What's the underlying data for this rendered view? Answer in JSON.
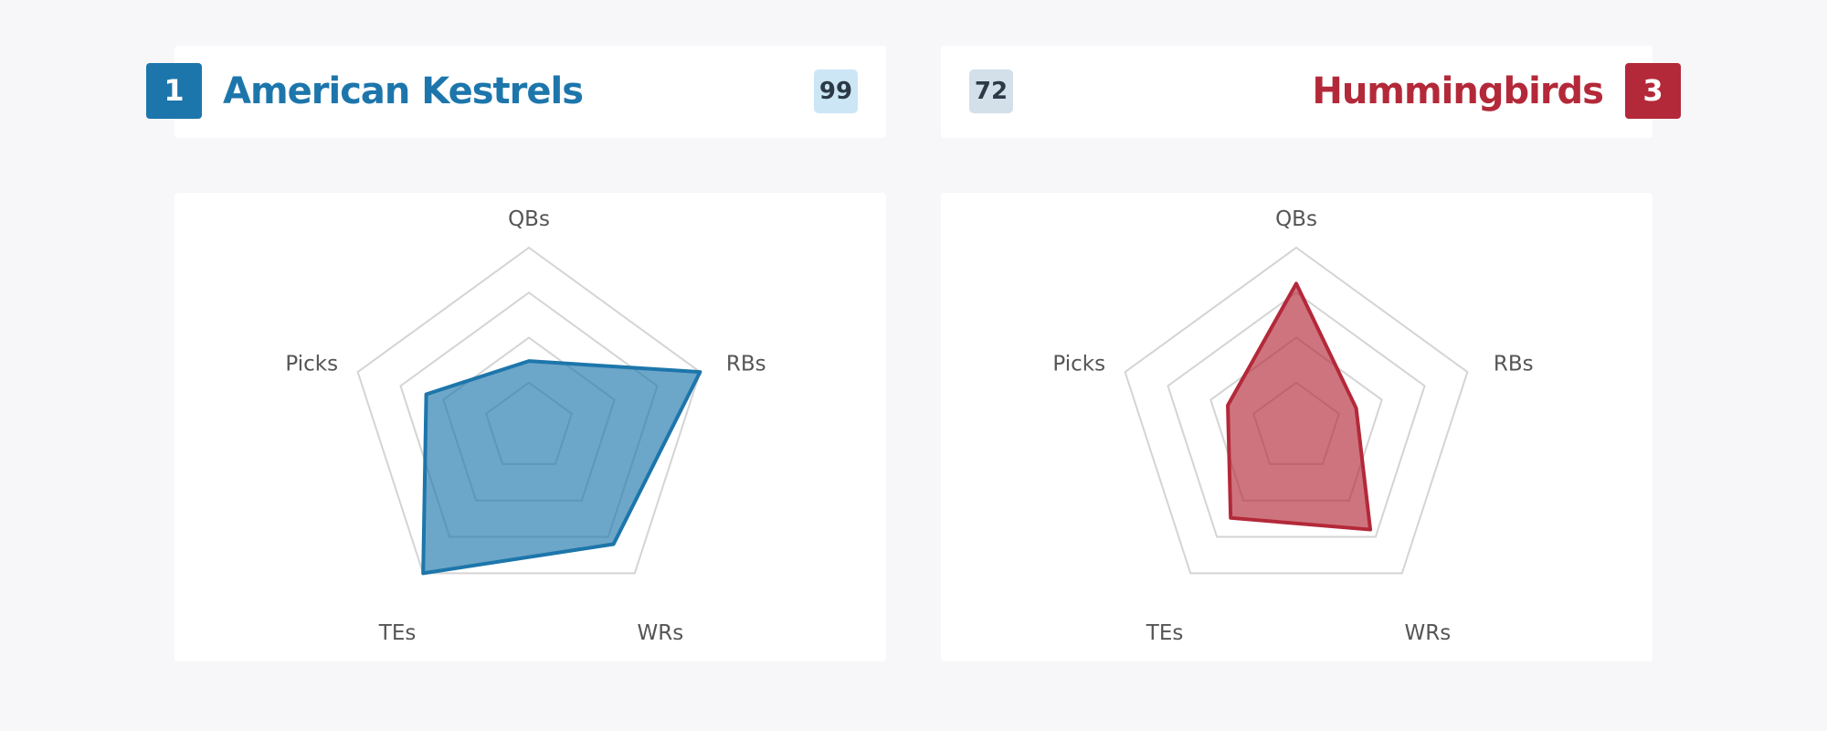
{
  "colors": {
    "background": "#f7f7f9",
    "left_team": "#1d76ab",
    "left_score_bg": "#cce6f6",
    "right_team": "#b32939",
    "right_score_bg": "#d3e0ea",
    "grid": "#d4d4d4",
    "label": "#555555"
  },
  "left_team": {
    "rank": "1",
    "name": "American Kestrels",
    "score": "99"
  },
  "right_team": {
    "rank": "3",
    "name": "Hummingbirds",
    "score": "72"
  },
  "chart_data": [
    {
      "type": "radar",
      "team": "American Kestrels",
      "axes": [
        "QBs",
        "RBs",
        "WRs",
        "TEs",
        "Picks"
      ],
      "values": [
        0.37,
        1.0,
        0.8,
        1.0,
        0.6
      ],
      "range": [
        0,
        1
      ],
      "grid_levels": 4,
      "color": "#1d76ab"
    },
    {
      "type": "radar",
      "team": "Hummingbirds",
      "axes": [
        "QBs",
        "RBs",
        "WRs",
        "TEs",
        "Picks"
      ],
      "values": [
        0.8,
        0.35,
        0.7,
        0.62,
        0.4
      ],
      "range": [
        0,
        1
      ],
      "grid_levels": 4,
      "color": "#b32939"
    }
  ]
}
